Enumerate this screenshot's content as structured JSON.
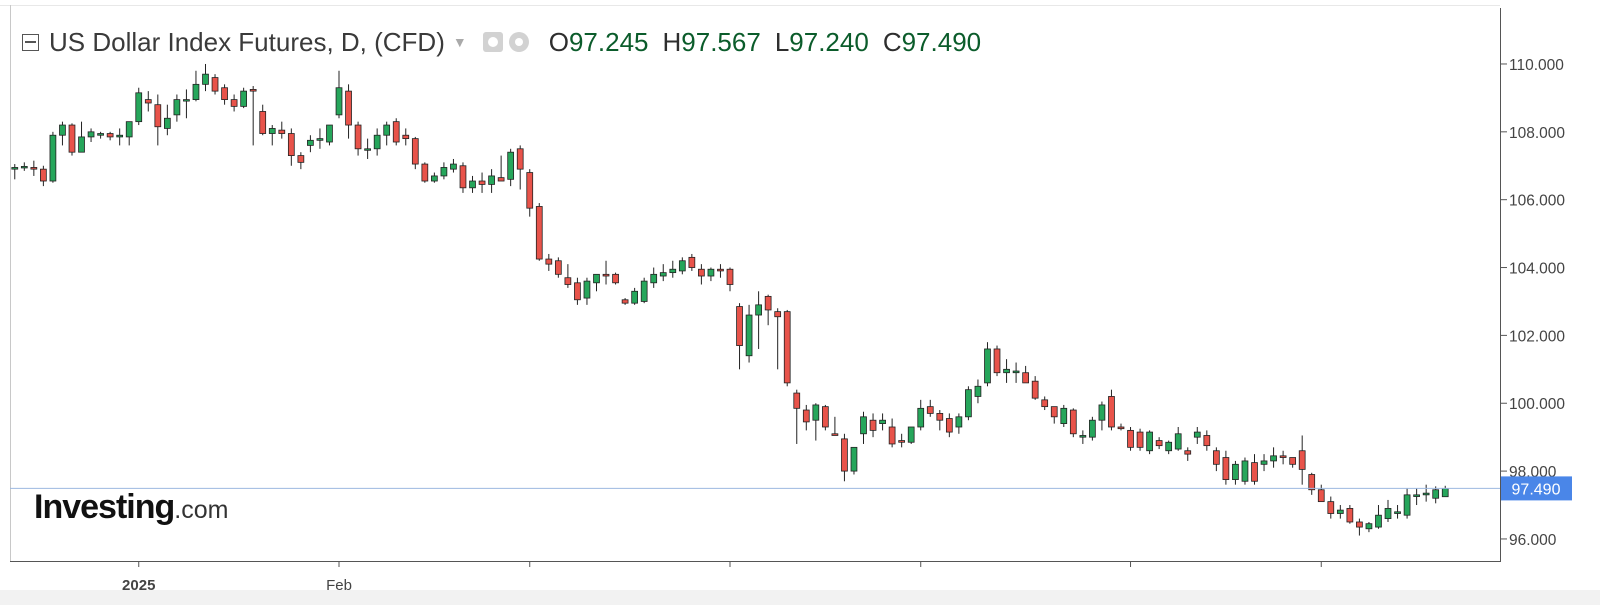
{
  "header": {
    "title": "US Dollar Index Futures, D, (CFD)",
    "ohlc": [
      {
        "key": "O",
        "value": "97.245"
      },
      {
        "key": "H",
        "value": "97.567"
      },
      {
        "key": "L",
        "value": "97.240"
      },
      {
        "key": "C",
        "value": "97.490"
      }
    ]
  },
  "logo": {
    "brand": "Investing",
    "suffix": ".com"
  },
  "colors": {
    "up": "#26a65b",
    "down": "#e8534a",
    "last_price": "#4a86e8",
    "axis": "#555555"
  },
  "chart_data": {
    "type": "candlestick",
    "ylim": [
      95.35,
      111.65
    ],
    "y_ticks": [
      "110.000",
      "108.000",
      "106.000",
      "104.000",
      "102.000",
      "100.000",
      "98.000",
      "96.000"
    ],
    "x_labels": [
      {
        "index": 13,
        "label": "2025"
      },
      {
        "index": 34,
        "label": "Feb"
      }
    ],
    "last_price": "97.490",
    "bars": [
      [
        106.9,
        107.05,
        106.6,
        106.95
      ],
      [
        106.95,
        107.1,
        106.85,
        106.98
      ],
      [
        106.95,
        107.15,
        106.7,
        106.9
      ],
      [
        106.9,
        107.0,
        106.4,
        106.55
      ],
      [
        106.55,
        108.0,
        106.5,
        107.9
      ],
      [
        107.9,
        108.3,
        107.6,
        108.2
      ],
      [
        108.2,
        108.25,
        107.3,
        107.4
      ],
      [
        107.4,
        108.3,
        107.4,
        107.85
      ],
      [
        107.85,
        108.1,
        107.7,
        108.0
      ],
      [
        107.9,
        108.0,
        107.8,
        107.95
      ],
      [
        107.95,
        108.0,
        107.75,
        107.85
      ],
      [
        107.85,
        108.1,
        107.6,
        107.9
      ],
      [
        107.85,
        108.2,
        107.6,
        108.3
      ],
      [
        108.3,
        109.3,
        108.2,
        109.15
      ],
      [
        108.95,
        109.2,
        108.6,
        108.85
      ],
      [
        108.8,
        109.1,
        107.6,
        108.15
      ],
      [
        108.1,
        108.8,
        107.9,
        108.4
      ],
      [
        108.5,
        109.1,
        108.3,
        108.95
      ],
      [
        108.95,
        109.25,
        108.4,
        108.95
      ],
      [
        108.95,
        109.8,
        108.9,
        109.4
      ],
      [
        109.4,
        110.0,
        109.2,
        109.7
      ],
      [
        109.6,
        109.7,
        109.1,
        109.2
      ],
      [
        109.3,
        109.4,
        108.8,
        108.95
      ],
      [
        108.95,
        109.1,
        108.6,
        108.75
      ],
      [
        108.75,
        109.3,
        108.7,
        109.2
      ],
      [
        109.25,
        109.35,
        107.6,
        109.2
      ],
      [
        108.6,
        108.8,
        107.9,
        107.95
      ],
      [
        107.95,
        108.2,
        107.6,
        108.1
      ],
      [
        108.05,
        108.3,
        107.8,
        107.95
      ],
      [
        107.95,
        108.1,
        107.0,
        107.3
      ],
      [
        107.3,
        107.4,
        106.9,
        107.1
      ],
      [
        107.6,
        107.9,
        107.4,
        107.75
      ],
      [
        107.75,
        108.1,
        107.5,
        107.8
      ],
      [
        107.7,
        108.2,
        107.6,
        108.2
      ],
      [
        108.5,
        109.8,
        108.4,
        109.3
      ],
      [
        109.2,
        109.4,
        107.8,
        108.2
      ],
      [
        108.2,
        108.3,
        107.3,
        107.5
      ],
      [
        107.5,
        107.8,
        107.2,
        107.5
      ],
      [
        107.5,
        108.1,
        107.3,
        107.9
      ],
      [
        107.9,
        108.3,
        107.6,
        108.2
      ],
      [
        108.3,
        108.4,
        107.6,
        107.7
      ],
      [
        107.9,
        108.1,
        107.6,
        107.8
      ],
      [
        107.8,
        107.85,
        106.9,
        107.05
      ],
      [
        107.05,
        107.1,
        106.5,
        106.55
      ],
      [
        106.55,
        106.8,
        106.5,
        106.7
      ],
      [
        106.7,
        107.1,
        106.6,
        106.95
      ],
      [
        106.9,
        107.2,
        106.8,
        107.05
      ],
      [
        107.0,
        107.1,
        106.2,
        106.35
      ],
      [
        106.35,
        106.7,
        106.2,
        106.55
      ],
      [
        106.55,
        106.8,
        106.2,
        106.45
      ],
      [
        106.45,
        106.9,
        106.2,
        106.7
      ],
      [
        106.65,
        107.3,
        106.6,
        106.55
      ],
      [
        106.6,
        107.5,
        106.4,
        107.4
      ],
      [
        107.5,
        107.6,
        106.3,
        106.9
      ],
      [
        106.8,
        106.9,
        105.5,
        105.75
      ],
      [
        105.8,
        105.9,
        104.2,
        104.25
      ],
      [
        104.25,
        104.4,
        103.9,
        104.1
      ],
      [
        104.2,
        104.3,
        103.7,
        103.8
      ],
      [
        103.7,
        104.1,
        103.4,
        103.5
      ],
      [
        103.55,
        103.7,
        102.9,
        103.05
      ],
      [
        103.1,
        103.7,
        102.9,
        103.6
      ],
      [
        103.55,
        103.8,
        103.3,
        103.8
      ],
      [
        103.8,
        104.2,
        103.5,
        103.75
      ],
      [
        103.8,
        103.85,
        103.5,
        103.55
      ],
      [
        103.05,
        103.1,
        102.9,
        102.95
      ],
      [
        102.95,
        103.4,
        102.9,
        103.3
      ],
      [
        103.0,
        103.7,
        102.95,
        103.6
      ],
      [
        103.55,
        104.0,
        103.4,
        103.8
      ],
      [
        103.75,
        104.1,
        103.6,
        103.85
      ],
      [
        103.85,
        104.2,
        103.7,
        103.95
      ],
      [
        103.9,
        104.3,
        103.8,
        104.2
      ],
      [
        104.3,
        104.4,
        103.9,
        104.0
      ],
      [
        103.95,
        104.1,
        103.5,
        103.75
      ],
      [
        103.75,
        104.0,
        103.6,
        103.95
      ],
      [
        103.95,
        104.1,
        103.7,
        103.9
      ],
      [
        103.95,
        104.0,
        103.3,
        103.5
      ],
      [
        102.85,
        102.95,
        101.0,
        101.7
      ],
      [
        101.4,
        102.9,
        101.2,
        102.6
      ],
      [
        102.6,
        103.3,
        101.6,
        102.9
      ],
      [
        103.15,
        103.2,
        102.3,
        102.75
      ],
      [
        102.7,
        102.8,
        101.0,
        102.55
      ],
      [
        102.7,
        102.75,
        100.5,
        100.6
      ],
      [
        100.3,
        100.4,
        98.8,
        99.85
      ],
      [
        99.8,
        99.95,
        99.2,
        99.45
      ],
      [
        99.5,
        100.0,
        98.9,
        99.95
      ],
      [
        99.9,
        99.95,
        99.2,
        99.3
      ],
      [
        99.1,
        99.6,
        99.1,
        99.05
      ],
      [
        98.95,
        99.1,
        97.7,
        98.0
      ],
      [
        98.0,
        98.7,
        97.9,
        98.7
      ],
      [
        99.1,
        99.75,
        98.8,
        99.6
      ],
      [
        99.5,
        99.7,
        99.0,
        99.2
      ],
      [
        99.4,
        99.7,
        99.2,
        99.5
      ],
      [
        99.3,
        99.55,
        98.7,
        98.8
      ],
      [
        98.9,
        99.1,
        98.7,
        98.85
      ],
      [
        98.85,
        99.3,
        98.8,
        99.3
      ],
      [
        99.3,
        100.1,
        99.2,
        99.85
      ],
      [
        99.9,
        100.1,
        99.6,
        99.7
      ],
      [
        99.7,
        99.8,
        99.2,
        99.5
      ],
      [
        99.55,
        99.7,
        99.0,
        99.15
      ],
      [
        99.3,
        99.7,
        99.1,
        99.6
      ],
      [
        99.6,
        100.5,
        99.5,
        100.4
      ],
      [
        100.2,
        100.7,
        100.0,
        100.5
      ],
      [
        100.6,
        101.8,
        100.5,
        101.6
      ],
      [
        101.6,
        101.7,
        100.8,
        100.9
      ],
      [
        100.9,
        101.3,
        100.6,
        101.0
      ],
      [
        100.9,
        101.2,
        100.6,
        100.95
      ],
      [
        100.9,
        101.1,
        100.6,
        100.6
      ],
      [
        100.65,
        100.8,
        100.1,
        100.15
      ],
      [
        100.1,
        100.2,
        99.8,
        99.9
      ],
      [
        99.9,
        99.9,
        99.4,
        99.6
      ],
      [
        99.4,
        99.95,
        99.3,
        99.85
      ],
      [
        99.8,
        99.85,
        99.0,
        99.1
      ],
      [
        99.0,
        99.2,
        98.8,
        99.05
      ],
      [
        99.0,
        99.6,
        98.9,
        99.5
      ],
      [
        99.5,
        100.05,
        99.2,
        99.95
      ],
      [
        100.2,
        100.4,
        99.2,
        99.3
      ],
      [
        99.3,
        99.4,
        99.2,
        99.25
      ],
      [
        99.2,
        99.3,
        98.6,
        98.7
      ],
      [
        99.15,
        99.25,
        98.6,
        98.7
      ],
      [
        98.6,
        99.2,
        98.5,
        99.15
      ],
      [
        98.9,
        99.0,
        98.65,
        98.75
      ],
      [
        98.6,
        98.9,
        98.5,
        98.85
      ],
      [
        98.65,
        99.3,
        98.6,
        99.1
      ],
      [
        98.6,
        98.7,
        98.3,
        98.5
      ],
      [
        99.0,
        99.3,
        98.8,
        99.15
      ],
      [
        99.05,
        99.2,
        98.6,
        98.75
      ],
      [
        98.6,
        98.7,
        98.0,
        98.2
      ],
      [
        98.4,
        98.6,
        97.6,
        97.75
      ],
      [
        97.75,
        98.3,
        97.6,
        98.2
      ],
      [
        97.7,
        98.4,
        97.6,
        98.3
      ],
      [
        98.25,
        98.5,
        97.6,
        97.7
      ],
      [
        98.2,
        98.5,
        98.0,
        98.3
      ],
      [
        98.3,
        98.7,
        98.1,
        98.45
      ],
      [
        98.45,
        98.6,
        98.2,
        98.4
      ],
      [
        98.4,
        98.4,
        98.1,
        98.2
      ],
      [
        98.6,
        99.05,
        97.6,
        98.05
      ],
      [
        97.9,
        97.95,
        97.3,
        97.45
      ],
      [
        97.45,
        97.6,
        97.1,
        97.1
      ],
      [
        97.1,
        97.25,
        96.6,
        96.75
      ],
      [
        96.75,
        97.0,
        96.6,
        96.85
      ],
      [
        96.9,
        97.0,
        96.45,
        96.5
      ],
      [
        96.5,
        96.6,
        96.1,
        96.35
      ],
      [
        96.3,
        96.5,
        96.2,
        96.45
      ],
      [
        96.35,
        97.0,
        96.3,
        96.7
      ],
      [
        96.6,
        97.15,
        96.5,
        96.9
      ],
      [
        96.75,
        97.0,
        96.6,
        96.8
      ],
      [
        96.7,
        97.5,
        96.6,
        97.3
      ],
      [
        97.25,
        97.5,
        97.0,
        97.3
      ],
      [
        97.3,
        97.6,
        97.1,
        97.35
      ],
      [
        97.2,
        97.55,
        97.05,
        97.45
      ],
      [
        97.245,
        97.567,
        97.24,
        97.49
      ]
    ]
  }
}
